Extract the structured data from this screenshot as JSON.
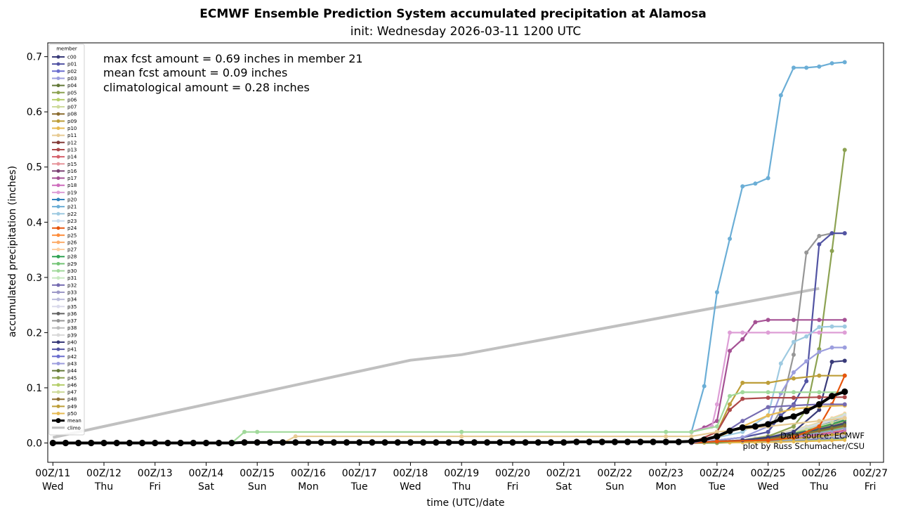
{
  "chart_data": {
    "type": "line",
    "title": "ECMWF Ensemble Prediction System accumulated precipitation at Alamosa",
    "subtitle": "init: Wednesday 2026-03-11 1200 UTC",
    "xlabel": "time (UTC)/date",
    "ylabel": "accumulated precipitation (inches)",
    "ylim": [
      -0.035,
      0.725
    ],
    "xlim_days_from_0Z11": [
      -0.1,
      16.26
    ],
    "x_ticks": [
      {
        "label": "00Z/11",
        "day": "Wed"
      },
      {
        "label": "00Z/12",
        "day": "Thu"
      },
      {
        "label": "00Z/13",
        "day": "Fri"
      },
      {
        "label": "00Z/14",
        "day": "Sat"
      },
      {
        "label": "00Z/15",
        "day": "Sun"
      },
      {
        "label": "00Z/16",
        "day": "Mon"
      },
      {
        "label": "00Z/17",
        "day": "Tue"
      },
      {
        "label": "00Z/18",
        "day": "Wed"
      },
      {
        "label": "00Z/19",
        "day": "Thu"
      },
      {
        "label": "00Z/20",
        "day": "Fri"
      },
      {
        "label": "00Z/21",
        "day": "Sat"
      },
      {
        "label": "00Z/22",
        "day": "Sun"
      },
      {
        "label": "00Z/23",
        "day": "Mon"
      },
      {
        "label": "00Z/24",
        "day": "Tue"
      },
      {
        "label": "00Z/25",
        "day": "Wed"
      },
      {
        "label": "00Z/26",
        "day": "Thu"
      },
      {
        "label": "00Z/27",
        "day": "Fri"
      }
    ],
    "y_ticks": [
      "0.0",
      "0.1",
      "0.2",
      "0.3",
      "0.4",
      "0.5",
      "0.6",
      "0.7"
    ],
    "annotations": [
      "max fcst amount = 0.69 inches in member 21",
      "mean fcst amount = 0.09 inches",
      "climatological amount = 0.28 inches"
    ],
    "credits": [
      "Data source: ECMWF",
      "plot by Russ Schumacher/CSU"
    ],
    "legend": {
      "title": "member",
      "placement": "upper left",
      "entries": [
        {
          "name": "c00",
          "color": "#393b79"
        },
        {
          "name": "p01",
          "color": "#5254a3"
        },
        {
          "name": "p02",
          "color": "#6b6ecf"
        },
        {
          "name": "p03",
          "color": "#9c9ede"
        },
        {
          "name": "p04",
          "color": "#637939"
        },
        {
          "name": "p05",
          "color": "#8ca252"
        },
        {
          "name": "p06",
          "color": "#b5cf6b"
        },
        {
          "name": "p07",
          "color": "#cedb9c"
        },
        {
          "name": "p08",
          "color": "#8c6d31"
        },
        {
          "name": "p09",
          "color": "#bd9e39"
        },
        {
          "name": "p10",
          "color": "#e7ba52"
        },
        {
          "name": "p11",
          "color": "#e7cb94"
        },
        {
          "name": "p12",
          "color": "#843c39"
        },
        {
          "name": "p13",
          "color": "#ad494a"
        },
        {
          "name": "p14",
          "color": "#d6616b"
        },
        {
          "name": "p15",
          "color": "#e7969c"
        },
        {
          "name": "p16",
          "color": "#7b4173"
        },
        {
          "name": "p17",
          "color": "#a55194"
        },
        {
          "name": "p18",
          "color": "#ce6dbd"
        },
        {
          "name": "p19",
          "color": "#de9ed6"
        },
        {
          "name": "p20",
          "color": "#3182bd"
        },
        {
          "name": "p21",
          "color": "#6baed6"
        },
        {
          "name": "p22",
          "color": "#9ecae1"
        },
        {
          "name": "p23",
          "color": "#c6dbef"
        },
        {
          "name": "p24",
          "color": "#e6550d"
        },
        {
          "name": "p25",
          "color": "#fd8d3c"
        },
        {
          "name": "p26",
          "color": "#fdae6b"
        },
        {
          "name": "p27",
          "color": "#fdd0a2"
        },
        {
          "name": "p28",
          "color": "#31a354"
        },
        {
          "name": "p29",
          "color": "#74c476"
        },
        {
          "name": "p30",
          "color": "#a1d99b"
        },
        {
          "name": "p31",
          "color": "#c7e9c0"
        },
        {
          "name": "p32",
          "color": "#756bb1"
        },
        {
          "name": "p33",
          "color": "#9e9ac8"
        },
        {
          "name": "p34",
          "color": "#bcbddc"
        },
        {
          "name": "p35",
          "color": "#dadaeb"
        },
        {
          "name": "p36",
          "color": "#636363"
        },
        {
          "name": "p37",
          "color": "#969696"
        },
        {
          "name": "p38",
          "color": "#bdbdbd"
        },
        {
          "name": "p39",
          "color": "#d9d9d9"
        },
        {
          "name": "p40",
          "color": "#393b79"
        },
        {
          "name": "p41",
          "color": "#5254a3"
        },
        {
          "name": "p42",
          "color": "#6b6ecf"
        },
        {
          "name": "p43",
          "color": "#9c9ede"
        },
        {
          "name": "p44",
          "color": "#637939"
        },
        {
          "name": "p45",
          "color": "#8ca252"
        },
        {
          "name": "p46",
          "color": "#b5cf6b"
        },
        {
          "name": "p47",
          "color": "#cedb9c"
        },
        {
          "name": "p48",
          "color": "#8c6d31"
        },
        {
          "name": "p49",
          "color": "#bd9e39"
        },
        {
          "name": "p50",
          "color": "#e7ba52"
        },
        {
          "name": "mean",
          "color": "#000000"
        },
        {
          "name": "climo",
          "color": "#c0c0c0"
        }
      ]
    },
    "highlighted_series": [
      {
        "member": "p21",
        "color": "#6baed6",
        "x": [
          12.5,
          12.75,
          13.0,
          13.25,
          13.5,
          13.75,
          14.0,
          14.25,
          14.5,
          14.75,
          15.0,
          15.25,
          15.5
        ],
        "y": [
          0.02,
          0.103,
          0.273,
          0.37,
          0.465,
          0.47,
          0.48,
          0.63,
          0.68,
          0.68,
          0.682,
          0.688,
          0.69
        ]
      },
      {
        "member": "p45",
        "color": "#8ca252",
        "x": [
          12.5,
          13.0,
          13.5,
          14.0,
          14.5,
          14.75,
          15.0,
          15.25,
          15.5
        ],
        "y": [
          0.0,
          0.0,
          0.005,
          0.012,
          0.03,
          0.06,
          0.17,
          0.348,
          0.531
        ]
      },
      {
        "member": "p37",
        "color": "#969696",
        "x": [
          12.5,
          13.0,
          13.5,
          14.0,
          14.25,
          14.5,
          14.75,
          15.0,
          15.25,
          15.5
        ],
        "y": [
          0.0,
          0.005,
          0.01,
          0.02,
          0.06,
          0.16,
          0.345,
          0.375,
          0.38,
          0.38
        ]
      },
      {
        "member": "p41",
        "color": "#5254a3",
        "x": [
          12.5,
          13.0,
          13.5,
          14.0,
          14.25,
          14.5,
          14.75,
          15.0,
          15.25,
          15.5
        ],
        "y": [
          0.0,
          0.005,
          0.01,
          0.02,
          0.05,
          0.07,
          0.112,
          0.36,
          0.38,
          0.38
        ]
      },
      {
        "member": "p17",
        "color": "#a55194",
        "x": [
          12.5,
          12.75,
          13.0,
          13.25,
          13.5,
          13.75,
          14.0,
          14.5,
          15.0,
          15.5
        ],
        "y": [
          0.02,
          0.028,
          0.04,
          0.167,
          0.188,
          0.219,
          0.223,
          0.223,
          0.223,
          0.223
        ]
      },
      {
        "member": "p19",
        "color": "#de9ed6",
        "x": [
          12.5,
          12.9,
          13.0,
          13.25,
          13.5,
          14.0,
          14.5,
          15.0,
          15.5
        ],
        "y": [
          0.02,
          0.03,
          0.07,
          0.2,
          0.2,
          0.2,
          0.2,
          0.2,
          0.2
        ]
      },
      {
        "member": "p22",
        "color": "#9ecae1",
        "x": [
          12.5,
          13.0,
          13.5,
          14.0,
          14.25,
          14.5,
          14.75,
          15.0,
          15.25,
          15.5
        ],
        "y": [
          0.0,
          0.01,
          0.02,
          0.05,
          0.144,
          0.183,
          0.193,
          0.21,
          0.211,
          0.211
        ]
      },
      {
        "member": "p43",
        "color": "#9c9ede",
        "x": [
          12.5,
          13.0,
          13.5,
          14.0,
          14.25,
          14.5,
          14.75,
          15.0,
          15.25,
          15.5
        ],
        "y": [
          0.0,
          0.005,
          0.01,
          0.03,
          0.09,
          0.128,
          0.148,
          0.165,
          0.173,
          0.173
        ]
      },
      {
        "member": "c00",
        "color": "#393b79",
        "x": [
          12.5,
          13.0,
          13.5,
          14.0,
          14.5,
          15.0,
          15.25,
          15.5
        ],
        "y": [
          0.0,
          0.003,
          0.005,
          0.01,
          0.02,
          0.06,
          0.147,
          0.149
        ]
      },
      {
        "member": "p09",
        "color": "#bd9e39",
        "x": [
          12.5,
          13.0,
          13.25,
          13.5,
          14.0,
          14.5,
          15.0,
          15.5
        ],
        "y": [
          0.0,
          0.02,
          0.07,
          0.109,
          0.109,
          0.117,
          0.122,
          0.122
        ]
      },
      {
        "member": "p30",
        "color": "#a1d99b",
        "x": [
          0.0,
          3.5,
          3.75,
          4.0,
          8.0,
          12.0,
          12.5,
          13.0,
          13.25,
          13.5,
          14.0,
          14.5,
          15.0,
          15.5
        ],
        "y": [
          0.0,
          0.0,
          0.02,
          0.02,
          0.02,
          0.02,
          0.02,
          0.03,
          0.085,
          0.092,
          0.092,
          0.092,
          0.092,
          0.092
        ]
      },
      {
        "member": "p13",
        "color": "#ad494a",
        "x": [
          12.5,
          13.0,
          13.25,
          13.5,
          14.0,
          14.5,
          15.0,
          15.5
        ],
        "y": [
          0.0,
          0.02,
          0.06,
          0.08,
          0.082,
          0.082,
          0.083,
          0.083
        ]
      },
      {
        "member": "p24",
        "color": "#e6550d",
        "x": [
          12.5,
          13.0,
          14.0,
          14.5,
          15.0,
          15.25,
          15.5
        ],
        "y": [
          0.0,
          0.003,
          0.005,
          0.01,
          0.03,
          0.07,
          0.122
        ]
      },
      {
        "member": "p10",
        "color": "#e7ba52",
        "x": [
          12.5,
          13.0,
          13.5,
          14.0,
          14.5,
          15.0,
          15.5
        ],
        "y": [
          0.0,
          0.01,
          0.03,
          0.05,
          0.062,
          0.066,
          0.068
        ]
      },
      {
        "member": "p32",
        "color": "#756bb1",
        "x": [
          12.5,
          13.0,
          13.5,
          14.0,
          14.5,
          15.0,
          15.5
        ],
        "y": [
          0.0,
          0.01,
          0.04,
          0.065,
          0.068,
          0.07,
          0.07
        ]
      },
      {
        "member": "p11",
        "color": "#e7cb94",
        "x": [
          0.0,
          4.5,
          4.75,
          8.0,
          12.0,
          12.5,
          13.0,
          14.0,
          15.0,
          15.5
        ],
        "y": [
          0.0,
          0.0,
          0.012,
          0.012,
          0.012,
          0.012,
          0.02,
          0.03,
          0.04,
          0.045
        ]
      }
    ],
    "mean": {
      "x": [
        0,
        0.25,
        0.5,
        0.75,
        1,
        1.25,
        1.5,
        1.75,
        2,
        2.25,
        2.5,
        2.75,
        3,
        3.25,
        3.5,
        3.75,
        4,
        4.25,
        4.5,
        4.75,
        5,
        5.25,
        5.5,
        5.75,
        6,
        6.25,
        6.5,
        6.75,
        7,
        7.25,
        7.5,
        7.75,
        8,
        8.25,
        8.5,
        8.75,
        9,
        9.25,
        9.5,
        9.75,
        10,
        10.25,
        10.5,
        10.75,
        11,
        11.25,
        11.5,
        11.75,
        12,
        12.25,
        12.5,
        12.75,
        13,
        13.25,
        13.5,
        13.75,
        14,
        14.25,
        14.5,
        14.75,
        15,
        15.25,
        15.5
      ],
      "y": [
        0,
        0,
        0,
        0,
        0,
        0,
        0,
        0,
        0,
        0,
        0,
        0,
        0,
        0,
        0,
        0.001,
        0.001,
        0.001,
        0.001,
        0.001,
        0.001,
        0.001,
        0.001,
        0.001,
        0.001,
        0.001,
        0.001,
        0.001,
        0.001,
        0.001,
        0.001,
        0.001,
        0.001,
        0.001,
        0.001,
        0.001,
        0.001,
        0.001,
        0.001,
        0.001,
        0.001,
        0.002,
        0.002,
        0.002,
        0.002,
        0.002,
        0.002,
        0.002,
        0.002,
        0.002,
        0.003,
        0.006,
        0.012,
        0.022,
        0.028,
        0.03,
        0.034,
        0.043,
        0.048,
        0.058,
        0.07,
        0.085,
        0.093
      ]
    },
    "climo": {
      "x": [
        0.0,
        7.0,
        8.0,
        15.0
      ],
      "y": [
        0.01,
        0.15,
        0.16,
        0.28
      ]
    },
    "colors": {
      "climo": "#c0c0c0",
      "mean": "#000000",
      "background": "#ffffff"
    }
  }
}
